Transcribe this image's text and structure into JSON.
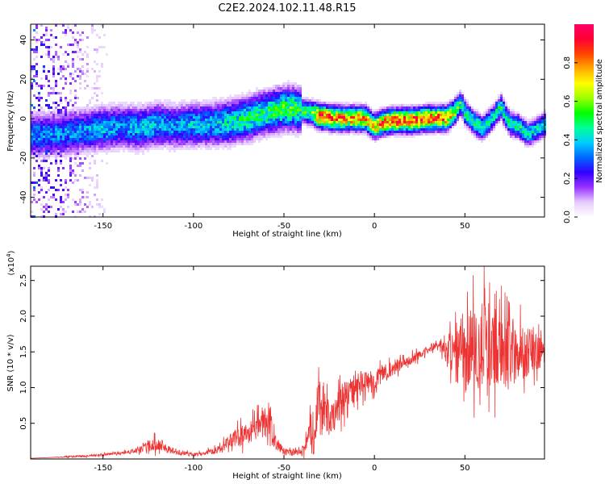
{
  "title": "C2E2.2024.102.11.48.R15",
  "chart_data": [
    {
      "type": "heatmap",
      "title": "C2E2.2024.102.11.48.R15",
      "xlabel": "Height of straight line (km)",
      "ylabel": "Frequency (Hz)",
      "xlim": [
        -190,
        94
      ],
      "ylim": [
        -50,
        48
      ],
      "xticks": [
        -150,
        -100,
        -50,
        0,
        50
      ],
      "yticks": [
        -40,
        -20,
        0,
        20,
        40
      ],
      "colorbar": {
        "label": "Normalized spectral amplitude",
        "range": [
          0,
          1
        ],
        "ticks": [
          "0.0",
          "0.2",
          "0.4",
          "0.6",
          "0.8"
        ],
        "colormap": [
          "#ffffff",
          "#e6ccff",
          "#9933ff",
          "#3300ff",
          "#0066ff",
          "#00ccff",
          "#00ff99",
          "#00ff00",
          "#99ff00",
          "#ffff00",
          "#ffaa00",
          "#ff4400",
          "#ff0033",
          "#ff0066"
        ]
      },
      "ridge": {
        "x": [
          -175,
          -160,
          -150,
          -140,
          -130,
          -120,
          -110,
          -100,
          -90,
          -80,
          -70,
          -60,
          -50,
          -45,
          -40,
          -35,
          -30,
          -20,
          -10,
          -5,
          0,
          5,
          10,
          20,
          30,
          40,
          45,
          48,
          50,
          55,
          60,
          65,
          70,
          75,
          80,
          85,
          94
        ],
        "freq": [
          -8,
          -6,
          -5,
          -4,
          -5,
          -3,
          -4,
          -3,
          -3,
          -2,
          0,
          3,
          5,
          5,
          4,
          3,
          1,
          0,
          0,
          0,
          -4,
          -2,
          -1,
          -1,
          0,
          0,
          4,
          8,
          3,
          -2,
          -5,
          0,
          6,
          -3,
          -4,
          -8,
          -3
        ],
        "amplitude": [
          0.35,
          0.35,
          0.4,
          0.35,
          0.4,
          0.4,
          0.35,
          0.4,
          0.4,
          0.45,
          0.5,
          0.5,
          0.55,
          0.55,
          0.5,
          0.55,
          0.9,
          0.85,
          0.8,
          0.8,
          0.75,
          0.85,
          0.9,
          0.9,
          0.9,
          0.85,
          0.6,
          0.5,
          0.5,
          0.5,
          0.5,
          0.45,
          0.5,
          0.45,
          0.5,
          0.45,
          0.45
        ]
      }
    },
    {
      "type": "line",
      "xlabel": "Height of straight line (km)",
      "ylabel": "SNR (10 * v/v)",
      "yscale_label": "(x10",
      "yscale_exp": "4",
      "yscale_close": ")",
      "xlim": [
        -190,
        94
      ],
      "ylim": [
        0,
        2.7
      ],
      "xticks": [
        -150,
        -100,
        -50,
        0,
        50
      ],
      "yticks": [
        "0.5",
        "1.0",
        "1.5",
        "2.0",
        "2.5"
      ],
      "color": "#ee3333",
      "series": [
        {
          "x": [
            -190,
            -180,
            -170,
            -160,
            -150,
            -140,
            -130,
            -125,
            -120,
            -115,
            -110,
            -105,
            -100,
            -95,
            -90,
            -85,
            -80,
            -75,
            -70,
            -65,
            -60,
            -58,
            -55,
            -50,
            -45,
            -40,
            -38,
            -35,
            -32,
            -30,
            -28,
            -25,
            -22,
            -20,
            -15,
            -10,
            -5,
            0,
            5,
            10,
            15,
            20,
            25,
            30,
            35,
            40,
            45,
            50,
            55,
            60,
            65,
            70,
            75,
            80,
            85,
            90,
            94
          ],
          "y": [
            0.01,
            0.02,
            0.03,
            0.04,
            0.06,
            0.08,
            0.12,
            0.18,
            0.22,
            0.15,
            0.1,
            0.08,
            0.06,
            0.08,
            0.1,
            0.15,
            0.25,
            0.3,
            0.35,
            0.45,
            0.5,
            0.55,
            0.25,
            0.1,
            0.08,
            0.1,
            0.2,
            0.4,
            0.65,
            0.8,
            0.7,
            0.55,
            0.6,
            0.75,
            0.9,
            1.0,
            1.05,
            1.1,
            1.2,
            1.25,
            1.35,
            1.4,
            1.45,
            1.55,
            1.58,
            1.55,
            1.5,
            1.55,
            1.6,
            1.55,
            1.6,
            1.5,
            1.55,
            1.5,
            1.45,
            1.5,
            1.5
          ],
          "noise": [
            0,
            0,
            0.01,
            0.01,
            0.02,
            0.02,
            0.04,
            0.08,
            0.1,
            0.06,
            0.04,
            0.03,
            0.02,
            0.03,
            0.04,
            0.06,
            0.1,
            0.15,
            0.15,
            0.2,
            0.2,
            0.2,
            0.1,
            0.04,
            0.04,
            0.05,
            0.12,
            0.25,
            0.35,
            0.4,
            0.3,
            0.25,
            0.2,
            0.25,
            0.25,
            0.2,
            0.18,
            0.15,
            0.12,
            0.1,
            0.08,
            0.08,
            0.06,
            0.05,
            0.06,
            0.15,
            0.45,
            0.55,
            0.6,
            0.65,
            0.6,
            0.55,
            0.5,
            0.45,
            0.35,
            0.25,
            0.2
          ]
        }
      ]
    }
  ]
}
